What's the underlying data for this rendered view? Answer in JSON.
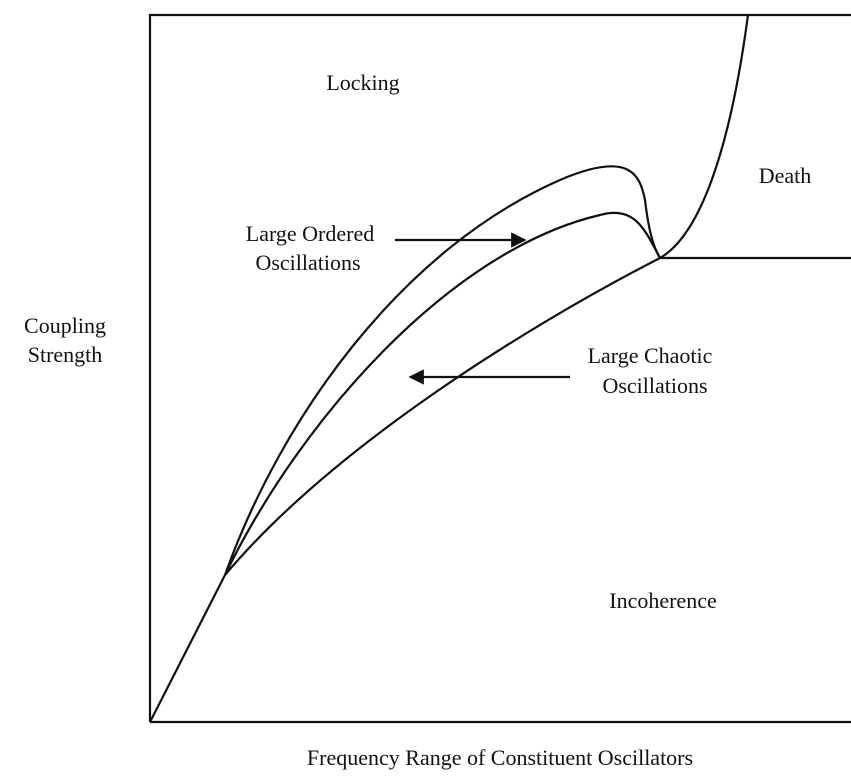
{
  "axes": {
    "x_label": "Frequency Range of Constituent Oscillators",
    "y_label": [
      "Coupling",
      "Strength"
    ]
  },
  "regions": {
    "locking": "Locking",
    "death": "Death",
    "ordered": [
      "Large Ordered",
      "Oscillations"
    ],
    "chaotic": [
      "Large Chaotic",
      "Oscillations"
    ],
    "incoherence": "Incoherence"
  }
}
